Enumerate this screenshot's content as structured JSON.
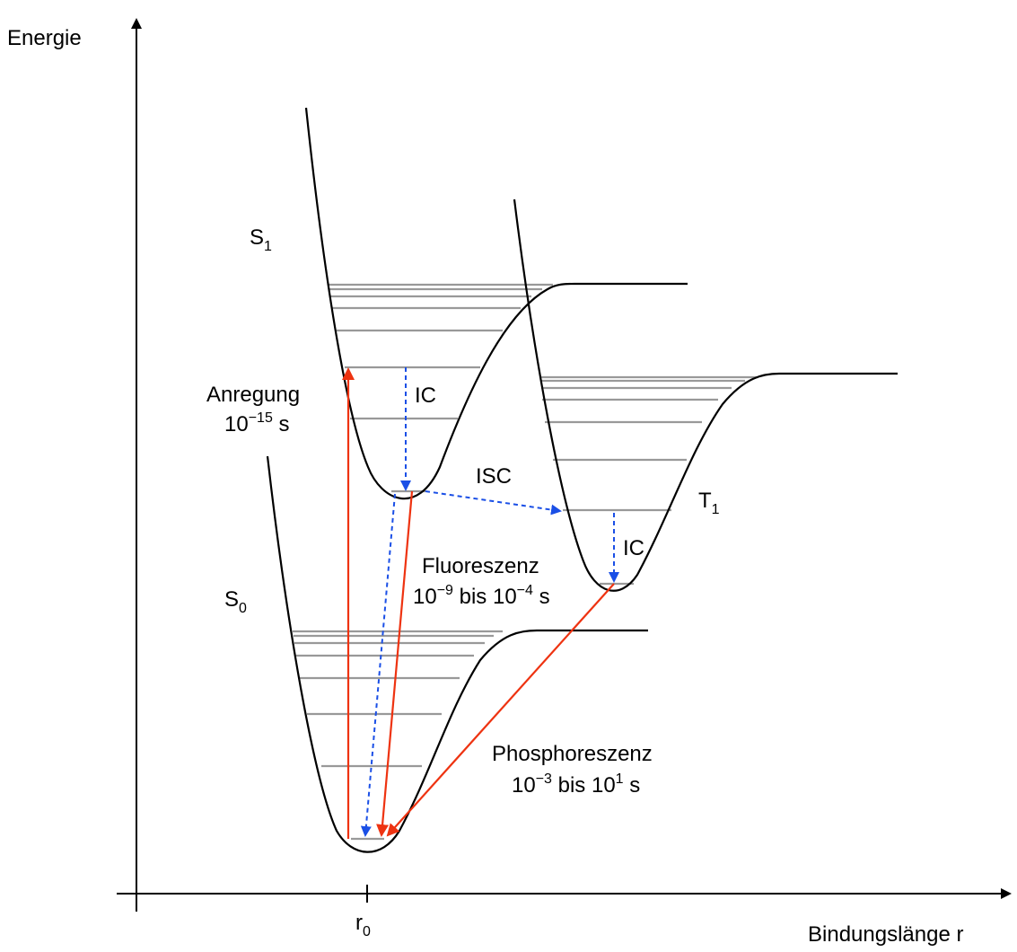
{
  "axes": {
    "y_label": "Energie",
    "x_label": "Bindungslänge r",
    "x_tick": {
      "main": "r",
      "sub": "0"
    }
  },
  "states": {
    "s0": {
      "main": "S",
      "sub": "0"
    },
    "s1": {
      "main": "S",
      "sub": "1"
    },
    "t1": {
      "main": "T",
      "sub": "1"
    }
  },
  "processes": {
    "excitation": {
      "name": "Anregung",
      "time_base": "10",
      "time_exp": "−15",
      "time_unit": " s"
    },
    "ic_s1": "IC",
    "isc": "ISC",
    "ic_t1": "IC",
    "fluorescence": {
      "name": "Fluoreszenz",
      "from_base": "10",
      "from_exp": "−9",
      "mid": " bis ",
      "to_base": "10",
      "to_exp": "−4",
      "unit": " s"
    },
    "phosphorescence": {
      "name": "Phosphoreszenz",
      "from_base": "10",
      "from_exp": "−3",
      "mid": " bis ",
      "to_base": "10",
      "to_exp": "1",
      "unit": " s"
    }
  },
  "colors": {
    "emission_arrow": "#ee3311",
    "nonradiative_arrow": "#1a4fe6",
    "vibrational_level": "#999999",
    "curve": "#000000"
  }
}
